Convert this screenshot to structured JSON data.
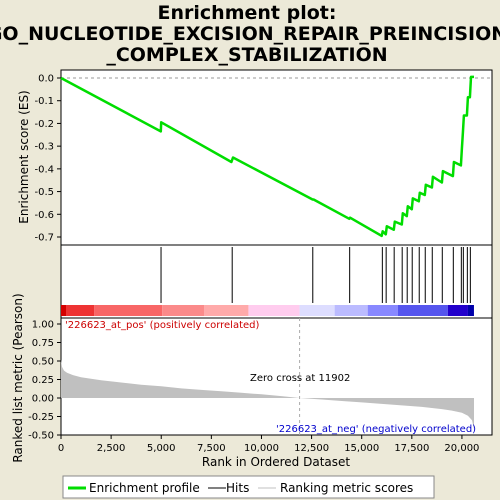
{
  "title_lines": [
    "Enrichment plot:",
    "GO_NUCLEOTIDE_EXCISION_REPAIR_PREINCISION",
    "_COMPLEX_STABILIZATION"
  ],
  "colors": {
    "background": "#ece9d8",
    "es_line": "#00dd00",
    "hits": "#000000",
    "metric_fill": "#c0c0c0",
    "pos_label": "#cc0000",
    "neg_label": "#0000cc",
    "zero_cross_line": "#aaaaaa"
  },
  "chart_data": [
    {
      "type": "line",
      "name": "enrichment-profile",
      "ylabel": "Enrichment score (ES)",
      "xlim": [
        0,
        21500
      ],
      "ylim": [
        -0.73,
        0.05
      ],
      "y_ticks": [
        0.0,
        -0.1,
        -0.2,
        -0.3,
        -0.4,
        -0.5,
        -0.6,
        -0.7
      ],
      "y_tick_labels": [
        "0.0",
        "-0.1",
        "-0.2",
        "-0.3",
        "-0.4",
        "-0.5",
        "-0.6",
        "-0.7"
      ],
      "series": [
        {
          "name": "Enrichment profile",
          "x": [
            0,
            4980,
            5000,
            8500,
            8580,
            12550,
            12600,
            14380,
            14420,
            16000,
            16050,
            16200,
            16250,
            16600,
            16650,
            17000,
            17050,
            17250,
            17300,
            17500,
            17550,
            17850,
            17900,
            18150,
            18200,
            18500,
            18550,
            19000,
            19050,
            19550,
            19600,
            19950,
            20000,
            20050,
            20100,
            20250,
            20300,
            20400,
            20450,
            20600
          ],
          "y": [
            0.0,
            -0.235,
            -0.195,
            -0.37,
            -0.35,
            -0.535,
            -0.535,
            -0.62,
            -0.615,
            -0.695,
            -0.675,
            -0.688,
            -0.653,
            -0.668,
            -0.632,
            -0.645,
            -0.595,
            -0.608,
            -0.565,
            -0.578,
            -0.53,
            -0.543,
            -0.505,
            -0.515,
            -0.47,
            -0.482,
            -0.435,
            -0.46,
            -0.41,
            -0.432,
            -0.37,
            -0.385,
            -0.31,
            -0.24,
            -0.165,
            -0.165,
            -0.085,
            -0.085,
            0.005,
            0.005
          ]
        }
      ]
    },
    {
      "type": "scatter",
      "name": "hits",
      "series": [
        {
          "name": "Hits",
          "x": [
            4990,
            8540,
            12560,
            14400,
            16030,
            16220,
            16620,
            17020,
            17270,
            17520,
            17870,
            18170,
            18520,
            19020,
            19570,
            19970,
            20070,
            20270,
            20420
          ]
        }
      ]
    },
    {
      "type": "area",
      "name": "ranked-list-metric",
      "xlabel": "Rank in Ordered Dataset",
      "ylabel": "Ranked list metric (Pearson)",
      "xlim": [
        0,
        21500
      ],
      "ylim": [
        -0.5,
        1.05
      ],
      "x_ticks": [
        0,
        2500,
        5000,
        7500,
        10000,
        12500,
        15000,
        17500,
        20000
      ],
      "x_tick_labels": [
        "0",
        "2,500",
        "5,000",
        "7,500",
        "10,000",
        "12,500",
        "15,000",
        "17,500",
        "20,000"
      ],
      "y_ticks": [
        1.0,
        0.75,
        0.5,
        0.25,
        0.0,
        -0.25,
        -0.5
      ],
      "y_tick_labels": [
        "1.00",
        "0.75",
        "0.50",
        "0.25",
        "0.00",
        "-0.25",
        "-0.50"
      ],
      "series": [
        {
          "name": "Ranking metric scores",
          "x": [
            0,
            50,
            150,
            300,
            600,
            1000,
            2000,
            3000,
            4000,
            5000,
            6000,
            7000,
            8000,
            9000,
            10000,
            11000,
            11902,
            13000,
            14000,
            15000,
            16000,
            17000,
            18000,
            19000,
            19500,
            20000,
            20300,
            20500,
            20600
          ],
          "y": [
            0.52,
            0.42,
            0.37,
            0.34,
            0.31,
            0.28,
            0.24,
            0.21,
            0.18,
            0.16,
            0.13,
            0.11,
            0.09,
            0.07,
            0.05,
            0.025,
            0.0,
            -0.02,
            -0.04,
            -0.06,
            -0.08,
            -0.1,
            -0.12,
            -0.15,
            -0.17,
            -0.2,
            -0.24,
            -0.3,
            -0.42
          ]
        }
      ],
      "zero_cross": 11902,
      "annotations": {
        "pos_label": "'226623_at_pos' (positively correlated)",
        "neg_label": "'226623_at_neg' (negatively correlated)",
        "zero_label": "Zero cross at 11902"
      }
    }
  ],
  "color_bar": {
    "segments": [
      {
        "start": 0,
        "end": 250,
        "color": "#d40000"
      },
      {
        "start": 250,
        "end": 1650,
        "color": "#ee3333"
      },
      {
        "start": 1650,
        "end": 5050,
        "color": "#f86666"
      },
      {
        "start": 5050,
        "end": 7150,
        "color": "#fb8a8a"
      },
      {
        "start": 7150,
        "end": 9350,
        "color": "#ffaaaa"
      },
      {
        "start": 9350,
        "end": 11900,
        "color": "#ffccee"
      },
      {
        "start": 11900,
        "end": 13650,
        "color": "#ddddff"
      },
      {
        "start": 13650,
        "end": 15300,
        "color": "#bbbbff"
      },
      {
        "start": 15300,
        "end": 16800,
        "color": "#8888ff"
      },
      {
        "start": 16800,
        "end": 19300,
        "color": "#5555ee"
      },
      {
        "start": 19300,
        "end": 20300,
        "color": "#2200cc"
      },
      {
        "start": 20300,
        "end": 20600,
        "color": "#0000aa"
      }
    ]
  },
  "legend": {
    "items": [
      {
        "label": "Enrichment profile",
        "color": "#00dd00",
        "kind": "thick-line"
      },
      {
        "label": "Hits",
        "color": "#000000",
        "kind": "thin-line"
      },
      {
        "label": "Ranking metric scores",
        "color": "#c0c0c0",
        "kind": "thin-line"
      }
    ]
  }
}
